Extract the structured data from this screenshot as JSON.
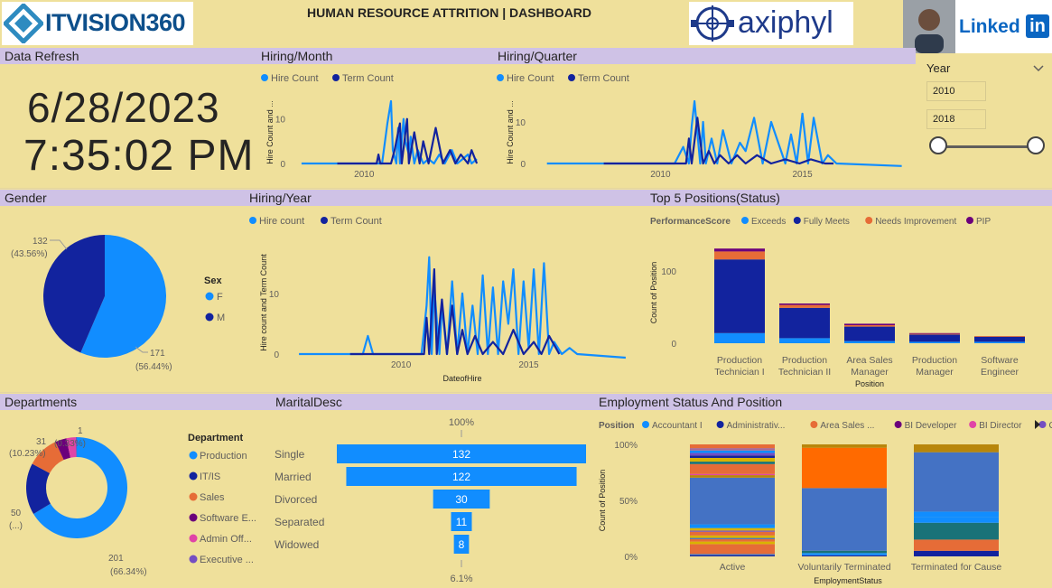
{
  "header": {
    "title": "HUMAN RESOURCE ATTRITION | DASHBOARD",
    "logo_left": "ITVISION360",
    "logo_mid": "axiphyl",
    "logo_right": "Linked",
    "logo_right_in": "in"
  },
  "refresh": {
    "title": "Data Refresh",
    "date": "6/28/2023",
    "time": "7:35:02 PM"
  },
  "slicer": {
    "title": "Year",
    "from": "2010",
    "to": "2018"
  },
  "colors": {
    "hire": "#118DFF",
    "term": "#12239E",
    "bg": "#EFE09B",
    "title_bar": "#CFC2E6"
  },
  "chart_data": [
    {
      "id": "hiring_month",
      "type": "line",
      "title": "Hiring/Month",
      "ylabel": "Hire Count and ...",
      "x_ticks": [
        "2010"
      ],
      "y_ticks": [
        "0",
        "10"
      ],
      "legend": [
        "Hire Count",
        "Term Count"
      ],
      "ylim": [
        0,
        14
      ],
      "xlim": [
        2006,
        2017
      ],
      "series": [
        {
          "name": "Hire Count",
          "x": [
            2006.5,
            2011.0,
            2011.3,
            2011.5,
            2011.6,
            2011.8,
            2011.9,
            2012.0,
            2012.2,
            2012.3,
            2012.5,
            2012.6,
            2012.8,
            2013.0,
            2013.3,
            2013.6,
            2013.9,
            2014.2,
            2014.5,
            2014.9,
            2015.2,
            2015.5,
            2015.8,
            2016.0,
            2016.3
          ],
          "y": [
            0,
            0,
            9,
            14,
            3,
            0,
            8,
            0,
            10,
            5,
            2,
            6,
            0,
            3,
            0,
            1,
            0,
            2,
            0,
            3,
            0,
            1,
            2,
            0,
            1
          ]
        },
        {
          "name": "Term Count",
          "x": [
            2008.5,
            2010.7,
            2010.8,
            2010.9,
            2011.5,
            2011.7,
            2012.0,
            2012.1,
            2012.4,
            2012.5,
            2012.8,
            2013.1,
            2013.3,
            2013.6,
            2014.0,
            2014.4,
            2014.8,
            2015.1,
            2015.4,
            2015.8,
            2016.0,
            2016.3
          ],
          "y": [
            0,
            0,
            2,
            0,
            0,
            3,
            9,
            0,
            10,
            0,
            7,
            0,
            5,
            0,
            8,
            0,
            3,
            0,
            2,
            0,
            3,
            0
          ]
        }
      ]
    },
    {
      "id": "hiring_quarter",
      "type": "line",
      "title": "Hiring/Quarter",
      "ylabel": "Hire Count and ...",
      "x_ticks": [
        "2010",
        "2015"
      ],
      "y_ticks": [
        "0",
        "10"
      ],
      "legend": [
        "Hire Count",
        "Term Count"
      ],
      "ylim": [
        0,
        15
      ],
      "xlim": [
        2005.5,
        2018.8
      ],
      "series": [
        {
          "name": "Hire Count",
          "x": [
            2006.0,
            2010.5,
            2010.8,
            2011.0,
            2011.1,
            2011.2,
            2011.4,
            2011.5,
            2011.6,
            2011.8,
            2012.0,
            2012.2,
            2012.5,
            2012.8,
            2013.0,
            2013.3,
            2013.6,
            2013.9,
            2014.2,
            2014.4,
            2014.6,
            2014.8,
            2015.0,
            2015.2,
            2015.4,
            2015.7,
            2015.9,
            2016.2,
            2018.5
          ],
          "y": [
            0,
            0,
            4,
            0,
            9,
            15,
            0,
            10,
            0,
            6,
            0,
            8,
            0,
            5,
            3,
            11,
            0,
            10,
            4,
            0,
            7,
            0,
            12,
            0,
            11,
            0,
            2,
            0,
            -1
          ]
        },
        {
          "name": "Term Count",
          "x": [
            2008.0,
            2010.9,
            2011.0,
            2011.1,
            2011.3,
            2011.5,
            2011.7,
            2011.9,
            2012.1,
            2012.4,
            2012.7,
            2013.0,
            2013.4,
            2013.9,
            2014.4,
            2014.9,
            2015.3,
            2015.8,
            2016.1
          ],
          "y": [
            0,
            0,
            6,
            0,
            11,
            0,
            3,
            0,
            2,
            0,
            2,
            0,
            2,
            0,
            1,
            0,
            1,
            0,
            0
          ]
        }
      ]
    },
    {
      "id": "gender",
      "type": "pie",
      "title": "Gender",
      "legend_title": "Sex",
      "slices": [
        {
          "label": "F",
          "value": 171,
          "pct": "56.44%"
        },
        {
          "label": "M",
          "value": 132,
          "pct": "43.56%"
        }
      ],
      "labels": [
        "132",
        "(43.56%)",
        "171",
        "(56.44%)"
      ]
    },
    {
      "id": "hiring_year",
      "type": "line",
      "title": "Hiring/Year",
      "xlabel": "DateofHire",
      "ylabel": "Hire count and Term Count",
      "x_ticks": [
        "2010",
        "2015"
      ],
      "y_ticks": [
        "0",
        "10"
      ],
      "legend": [
        "Hire count",
        "Term Count"
      ],
      "ylim": [
        0,
        17
      ],
      "xlim": [
        2005.5,
        2019.3
      ],
      "series": [
        {
          "name": "Hire count",
          "x": [
            2006.0,
            2008.5,
            2008.7,
            2008.9,
            2010.8,
            2011.0,
            2011.1,
            2011.2,
            2011.3,
            2011.5,
            2011.6,
            2011.8,
            2012.0,
            2012.2,
            2012.4,
            2012.6,
            2012.8,
            2013.0,
            2013.2,
            2013.4,
            2013.6,
            2013.8,
            2014.0,
            2014.2,
            2014.4,
            2014.6,
            2014.8,
            2015.0,
            2015.2,
            2015.4,
            2015.6,
            2015.8,
            2016.0,
            2016.3,
            2016.6,
            2016.9,
            2018.8
          ],
          "y": [
            0,
            0,
            3,
            0,
            0,
            8,
            16,
            0,
            11,
            0,
            8,
            0,
            12,
            0,
            10,
            0,
            8,
            0,
            13,
            0,
            11,
            0,
            12,
            5,
            14,
            0,
            12,
            1,
            14,
            0,
            15,
            0,
            2,
            0,
            1,
            0,
            -1
          ]
        },
        {
          "name": "Term Count",
          "x": [
            2008.0,
            2010.9,
            2011.0,
            2011.1,
            2011.3,
            2011.4,
            2011.6,
            2011.8,
            2012.0,
            2012.2,
            2012.4,
            2012.6,
            2012.9,
            2013.2,
            2013.6,
            2014.0,
            2014.4,
            2014.8,
            2015.2,
            2015.5,
            2015.8,
            2016.2
          ],
          "y": [
            0,
            0,
            6,
            0,
            14,
            0,
            9,
            0,
            8,
            0,
            4,
            0,
            3,
            0,
            2,
            0,
            4,
            0,
            2,
            0,
            3,
            0
          ]
        }
      ]
    },
    {
      "id": "top5_positions",
      "type": "bar",
      "title": "Top 5 Positions(Status)",
      "legend_title": "PerformanceScore",
      "xlabel": "Position",
      "ylabel": "Count of Position",
      "y_ticks": [
        "0",
        "100"
      ],
      "ylim": [
        0,
        140
      ],
      "categories": [
        "Production Technician I",
        "Production Technician II",
        "Area Sales Manager",
        "Production Manager",
        "Software Engineer"
      ],
      "category_lines": [
        [
          "Production",
          "Technician I"
        ],
        [
          "Production",
          "Technician II"
        ],
        [
          "Area Sales",
          "Manager"
        ],
        [
          "Production",
          "Manager"
        ],
        [
          "Software",
          "Engineer"
        ]
      ],
      "series": [
        {
          "name": "Exceeds",
          "color": "#118DFF",
          "values": [
            14,
            7,
            3,
            2,
            2
          ]
        },
        {
          "name": "Fully Meets",
          "color": "#12239E",
          "values": [
            102,
            42,
            20,
            10,
            7
          ]
        },
        {
          "name": "Needs Improvement",
          "color": "#E66C37",
          "values": [
            11,
            4,
            2,
            1,
            1
          ]
        },
        {
          "name": "PIP",
          "color": "#6B007B",
          "values": [
            4,
            2,
            2,
            1,
            0
          ]
        }
      ]
    },
    {
      "id": "departments",
      "type": "pie",
      "title": "Departments",
      "legend_title": "Department",
      "slices": [
        {
          "label": "Production",
          "value": 201,
          "color": "#118DFF"
        },
        {
          "label": "IT/IS",
          "value": 50,
          "color": "#12239E"
        },
        {
          "label": "Sales",
          "value": 31,
          "color": "#E66C37"
        },
        {
          "label": "Software E...",
          "value": 11,
          "color": "#6B007B"
        },
        {
          "label": "Admin Off...",
          "value": 9,
          "color": "#E044A7"
        },
        {
          "label": "Executive ...",
          "value": 1,
          "color": "#744EC2"
        }
      ],
      "labels": [
        "1",
        "(0.33%)",
        "31",
        "(10.23%)",
        "50",
        "(...)",
        "201",
        "(66.34%)"
      ]
    },
    {
      "id": "marital",
      "type": "bar",
      "title": "MaritalDesc",
      "top_label": "100%",
      "bottom_label": "6.1%",
      "categories": [
        "Single",
        "Married",
        "Divorced",
        "Separated",
        "Widowed"
      ],
      "values": [
        132,
        122,
        30,
        11,
        8
      ]
    },
    {
      "id": "employment_status",
      "type": "bar",
      "title": "Employment Status And Position",
      "legend_title": "Position",
      "legend": [
        "Accountant I",
        "Administrativ...",
        "Area Sales ...",
        "BI Developer",
        "BI Director",
        "CIO"
      ],
      "legend_colors": [
        "#118DFF",
        "#12239E",
        "#E66C37",
        "#6B007B",
        "#E044A7",
        "#744EC2"
      ],
      "xlabel": "EmploymentStatus",
      "ylabel": "Count of Position",
      "y_ticks": [
        "0%",
        "50%",
        "100%"
      ],
      "categories": [
        "Active",
        "Voluntarily Terminated",
        "Terminated for Cause"
      ],
      "stacks": [
        [
          {
            "c": "#12239E",
            "v": 1
          },
          {
            "c": "#4472C4",
            "v": 1
          },
          {
            "c": "#E66C37",
            "v": 8
          },
          {
            "c": "#D9B300",
            "v": 2
          },
          {
            "c": "#E66C37",
            "v": 2
          },
          {
            "c": "#4472C4",
            "v": 1
          },
          {
            "c": "#D9B300",
            "v": 2
          },
          {
            "c": "#E66C37",
            "v": 3
          },
          {
            "c": "#744EC2",
            "v": 1
          },
          {
            "c": "#D9B300",
            "v": 2
          },
          {
            "c": "#118DFF",
            "v": 3
          },
          {
            "c": "#4472C4",
            "v": 38
          },
          {
            "c": "#B8860B",
            "v": 2
          },
          {
            "c": "#E044A7",
            "v": 1
          },
          {
            "c": "#E66C37",
            "v": 8
          },
          {
            "c": "#197278",
            "v": 2
          },
          {
            "c": "#D9B300",
            "v": 3
          },
          {
            "c": "#12239E",
            "v": 2
          },
          {
            "c": "#744EC2",
            "v": 2
          },
          {
            "c": "#118DFF",
            "v": 2
          },
          {
            "c": "#A66999",
            "v": 2
          },
          {
            "c": "#E66C37",
            "v": 3
          }
        ],
        [
          {
            "c": "#12239E",
            "v": 1
          },
          {
            "c": "#118DFF",
            "v": 2
          },
          {
            "c": "#197278",
            "v": 2
          },
          {
            "c": "#4472C4",
            "v": 56
          },
          {
            "c": "#FF6A00",
            "v": 36
          },
          {
            "c": "#B8860B",
            "v": 3
          }
        ],
        [
          {
            "c": "#12239E",
            "v": 5
          },
          {
            "c": "#E66C37",
            "v": 10
          },
          {
            "c": "#197278",
            "v": 15
          },
          {
            "c": "#118DFF",
            "v": 5
          },
          {
            "c": "#118DFF",
            "v": 5
          },
          {
            "c": "#4472C4",
            "v": 53
          },
          {
            "c": "#B8860B",
            "v": 7
          }
        ]
      ]
    }
  ]
}
